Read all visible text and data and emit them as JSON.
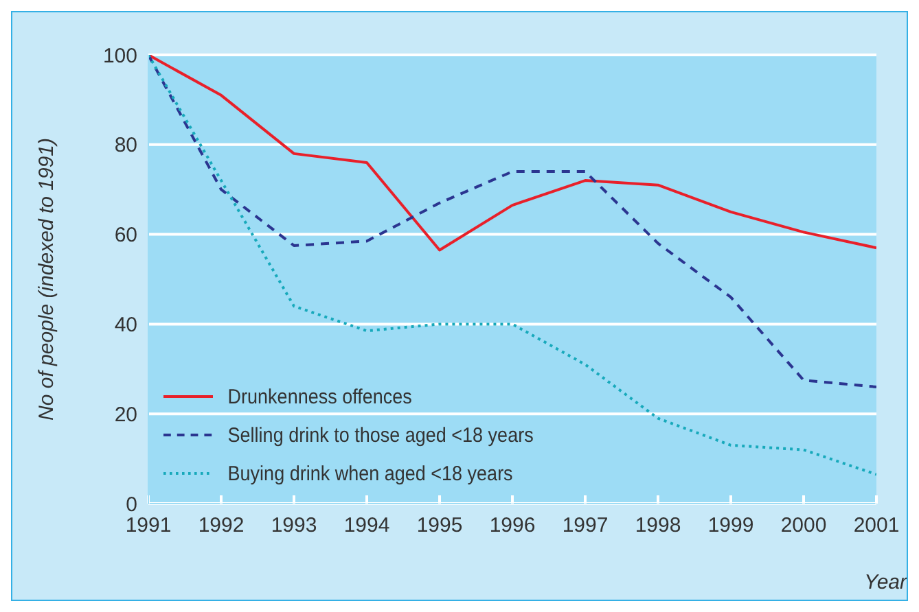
{
  "chart_data": {
    "type": "line",
    "xlabel": "Year",
    "ylabel": "No of people (indexed to 1991)",
    "x": [
      1991,
      1992,
      1993,
      1994,
      1995,
      1996,
      1997,
      1998,
      1999,
      2000,
      2001
    ],
    "xlim": [
      1991,
      2001
    ],
    "xticks": [
      1991,
      1992,
      1993,
      1994,
      1995,
      1996,
      1997,
      1998,
      1999,
      2000,
      2001
    ],
    "ylim": [
      0,
      100
    ],
    "yticks": [
      0,
      20,
      40,
      60,
      80,
      100
    ],
    "grid": "y",
    "legend": "bottom left",
    "marker": "none",
    "series": [
      {
        "name": "Drunkenness offences",
        "color": "#e8202a",
        "line_style": "solid",
        "values": [
          100,
          91,
          78,
          76,
          56.5,
          66.5,
          72,
          71,
          65,
          60.5,
          57
        ]
      },
      {
        "name": "Selling drink to those aged <18 years",
        "color": "#2b3590",
        "line_style": "dashed",
        "values": [
          100,
          70,
          57.5,
          58.5,
          67,
          74,
          74,
          58,
          46,
          27.5,
          26
        ]
      },
      {
        "name": "Buying drink when aged <18 years",
        "color": "#17a9bb",
        "line_style": "dotted",
        "values": [
          100,
          72,
          44,
          38.5,
          40,
          40,
          31,
          19,
          13,
          12,
          6.5
        ]
      }
    ]
  }
}
